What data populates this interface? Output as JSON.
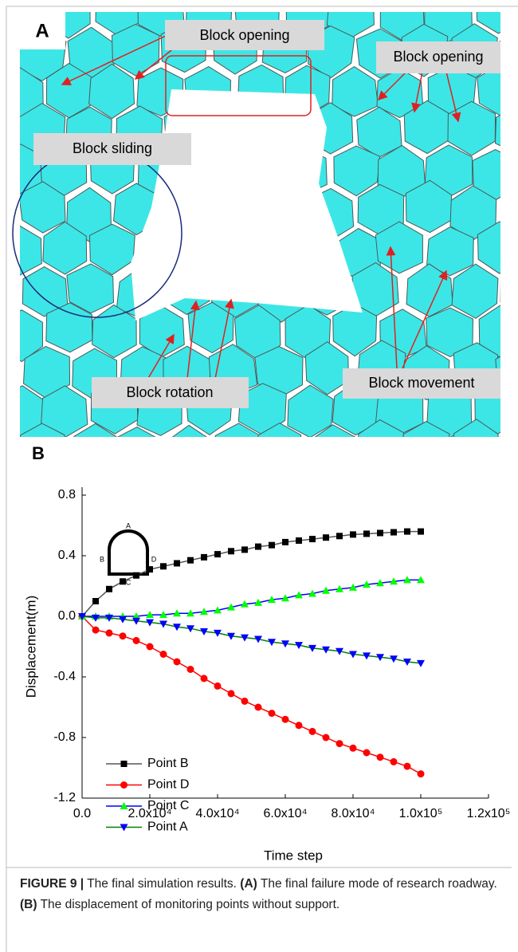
{
  "panel_a": {
    "label": "A",
    "annotations": [
      "Block opening",
      "Block opening",
      "Block sliding",
      "Block rotation",
      "Block movement"
    ]
  },
  "panel_b_label": "B",
  "chart_data": {
    "type": "line",
    "x_label": "Time step",
    "y_label": "Displacement(m)",
    "inset_labels": [
      "A",
      "B",
      "C",
      "D"
    ],
    "x": [
      0,
      4000,
      8000,
      12000,
      16000,
      20000,
      24000,
      28000,
      32000,
      36000,
      40000,
      44000,
      48000,
      52000,
      56000,
      60000,
      64000,
      68000,
      72000,
      76000,
      80000,
      84000,
      88000,
      92000,
      96000,
      100000
    ],
    "series": [
      {
        "name": "Point B",
        "color": "#000000",
        "line_color": "#555555",
        "marker": "square",
        "values": [
          0,
          0.1,
          0.18,
          0.23,
          0.27,
          0.31,
          0.33,
          0.35,
          0.37,
          0.39,
          0.41,
          0.43,
          0.44,
          0.46,
          0.47,
          0.49,
          0.5,
          0.51,
          0.52,
          0.53,
          0.54,
          0.545,
          0.55,
          0.555,
          0.56,
          0.56
        ]
      },
      {
        "name": "Point D",
        "color": "#ff0000",
        "line_color": "#ff0000",
        "marker": "circle",
        "values": [
          0,
          -0.09,
          -0.11,
          -0.13,
          -0.16,
          -0.2,
          -0.25,
          -0.3,
          -0.35,
          -0.41,
          -0.46,
          -0.51,
          -0.56,
          -0.6,
          -0.64,
          -0.68,
          -0.72,
          -0.76,
          -0.8,
          -0.84,
          -0.87,
          -0.9,
          -0.93,
          -0.96,
          -0.99,
          -1.04
        ]
      },
      {
        "name": "Point C",
        "color": "#00ff00",
        "line_color": "#0000ff",
        "marker": "triangle-up",
        "values": [
          0,
          0,
          0,
          0,
          0,
          0.01,
          0.01,
          0.02,
          0.02,
          0.03,
          0.04,
          0.06,
          0.08,
          0.09,
          0.11,
          0.12,
          0.14,
          0.15,
          0.17,
          0.18,
          0.19,
          0.21,
          0.22,
          0.23,
          0.24,
          0.24
        ]
      },
      {
        "name": "Point A",
        "color": "#0000ff",
        "line_color": "#008000",
        "marker": "triangle-down",
        "values": [
          0,
          -0.01,
          -0.01,
          -0.02,
          -0.03,
          -0.04,
          -0.05,
          -0.07,
          -0.08,
          -0.1,
          -0.11,
          -0.13,
          -0.14,
          -0.15,
          -0.17,
          -0.18,
          -0.19,
          -0.21,
          -0.22,
          -0.23,
          -0.25,
          -0.26,
          -0.27,
          -0.28,
          -0.3,
          -0.31
        ]
      }
    ],
    "xlim": [
      0,
      120000
    ],
    "ylim": [
      -1.2,
      0.8
    ],
    "xticks": [
      {
        "value": 0,
        "label": "0.0"
      },
      {
        "value": 20000,
        "label": "2.0x10⁴"
      },
      {
        "value": 40000,
        "label": "4.0x10⁴"
      },
      {
        "value": 60000,
        "label": "6.0x10⁴"
      },
      {
        "value": 80000,
        "label": "8.0x10⁴"
      },
      {
        "value": 100000,
        "label": "1.0x10⁵"
      },
      {
        "value": 120000,
        "label": "1.2x10⁵"
      }
    ],
    "yticks": [
      {
        "value": -1.2,
        "label": "-1.2"
      },
      {
        "value": -0.8,
        "label": "-0.8"
      },
      {
        "value": -0.4,
        "label": "-0.4"
      },
      {
        "value": 0,
        "label": "0.0"
      },
      {
        "value": 0.4,
        "label": "0.4"
      },
      {
        "value": 0.8,
        "label": "0.8"
      }
    ],
    "grid": false,
    "legend": "lower left"
  },
  "caption": {
    "figure": "FIGURE 9 |",
    "text1": "The final simulation results.",
    "a": "(A)",
    "text2": "The final failure mode of research roadway.",
    "b": "(B)",
    "text3": "The displacement of monitoring points without support."
  }
}
